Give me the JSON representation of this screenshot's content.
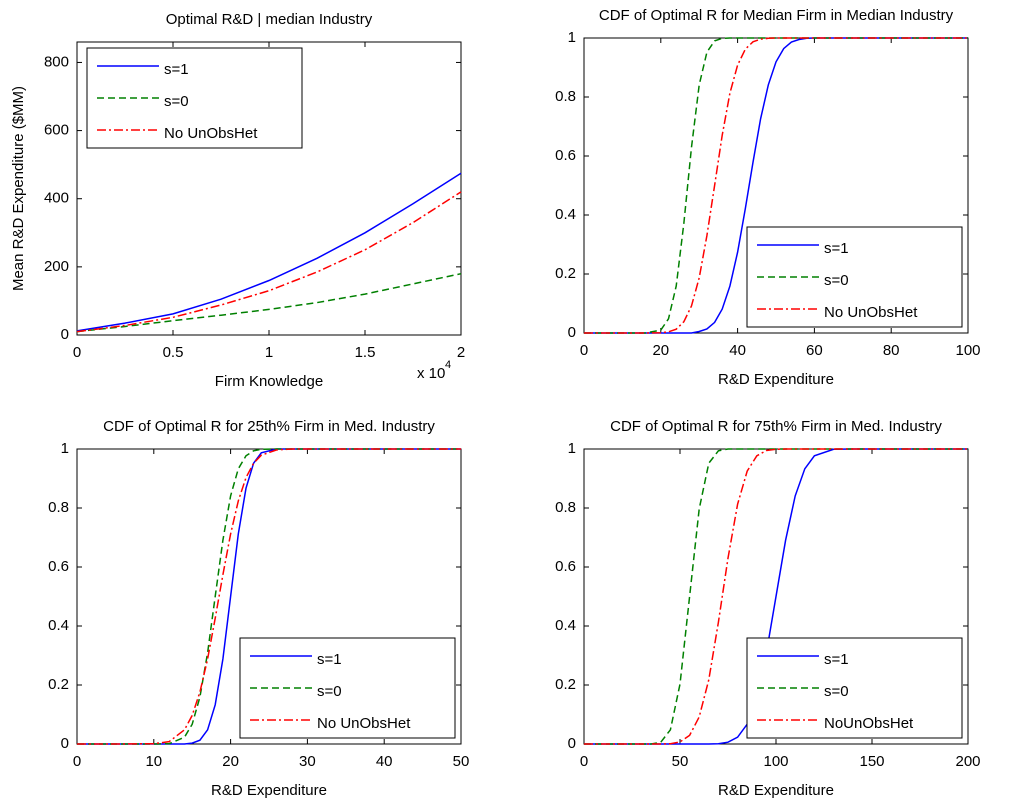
{
  "chart_data": [
    {
      "type": "line",
      "title": "Optimal R&D | median Industry",
      "xlabel": "Firm Knowledge",
      "ylabel": "Mean R&D Expenditure ($MM)",
      "x_offset_text": "x 10",
      "x_offset_exponent": "4",
      "x": [
        0,
        0.25,
        0.5,
        0.75,
        1,
        1.25,
        1.5,
        1.75,
        2
      ],
      "series": [
        {
          "name": "s=1",
          "color": "#0000ff",
          "linestyle": "-",
          "values": [
            12,
            35,
            62,
            105,
            160,
            225,
            300,
            385,
            475
          ]
        },
        {
          "name": "s=0",
          "color": "#008000",
          "linestyle": "--",
          "values": [
            10,
            25,
            42,
            58,
            75,
            95,
            120,
            150,
            180
          ]
        },
        {
          "name": "No UnObsHet",
          "color": "#ff0000",
          "linestyle": "-.",
          "values": [
            10,
            28,
            52,
            88,
            130,
            185,
            250,
            330,
            420
          ]
        }
      ],
      "xlim": [
        0,
        2
      ],
      "xticks": [
        0,
        0.5,
        1,
        1.5,
        2
      ],
      "ylim": [
        0,
        860
      ],
      "yticks": [
        0,
        200,
        400,
        600,
        800
      ],
      "legend": "northwest"
    },
    {
      "type": "line",
      "title": "CDF of Optimal R for Median Firm in Median Industry",
      "xlabel": "R&D Expenditure",
      "x": [
        0,
        10,
        16,
        20,
        22,
        24,
        26,
        28,
        30,
        32,
        34,
        36,
        38,
        40,
        42,
        44,
        46,
        48,
        50,
        52,
        54,
        56,
        58,
        60,
        70,
        80,
        90,
        100
      ],
      "series": [
        {
          "name": "s=1",
          "color": "#0000ff",
          "linestyle": "-",
          "values": [
            0,
            0,
            0,
            0,
            0,
            0,
            0,
            0,
            0.005,
            0.014,
            0.036,
            0.081,
            0.159,
            0.274,
            0.421,
            0.579,
            0.726,
            0.841,
            0.919,
            0.964,
            0.986,
            0.995,
            0.999,
            1,
            1,
            1,
            1,
            1
          ]
        },
        {
          "name": "s=0",
          "color": "#008000",
          "linestyle": "--",
          "values": [
            0,
            0,
            0,
            0.01,
            0.048,
            0.159,
            0.37,
            0.63,
            0.841,
            0.952,
            0.99,
            0.999,
            1,
            1,
            1,
            1,
            1,
            1,
            1,
            1,
            1,
            1,
            1,
            1,
            1,
            1,
            1,
            1
          ]
        },
        {
          "name": "No UnObsHet",
          "color": "#ff0000",
          "linestyle": "-.",
          "values": [
            0,
            0,
            0,
            0.001,
            0.004,
            0.013,
            0.038,
            0.092,
            0.187,
            0.33,
            0.5,
            0.67,
            0.813,
            0.908,
            0.962,
            0.987,
            0.996,
            0.999,
            1,
            1,
            1,
            1,
            1,
            1,
            1,
            1,
            1,
            1
          ]
        }
      ],
      "xlim": [
        0,
        100
      ],
      "xticks": [
        0,
        20,
        40,
        60,
        80,
        100
      ],
      "ylim": [
        0,
        1
      ],
      "yticks": [
        0,
        0.2,
        0.4,
        0.6,
        0.8,
        1
      ],
      "legend": "southeast"
    },
    {
      "type": "line",
      "title": "CDF of Optimal R for 25th% Firm in Med. Industry",
      "xlabel": "R&D Expenditure",
      "x": [
        0,
        5,
        10,
        12,
        14,
        15,
        16,
        17,
        18,
        19,
        20,
        21,
        22,
        23,
        24,
        26,
        28,
        30,
        40,
        50
      ],
      "series": [
        {
          "name": "s=1",
          "color": "#0000ff",
          "linestyle": "-",
          "values": [
            0,
            0,
            0,
            0,
            0,
            0.003,
            0.013,
            0.048,
            0.133,
            0.288,
            0.5,
            0.712,
            0.867,
            0.952,
            0.987,
            1,
            1,
            1,
            1,
            1
          ]
        },
        {
          "name": "s=0",
          "color": "#008000",
          "linestyle": "--",
          "values": [
            0,
            0,
            0,
            0.001,
            0.023,
            0.067,
            0.159,
            0.309,
            0.5,
            0.691,
            0.841,
            0.933,
            0.977,
            0.994,
            0.999,
            1,
            1,
            1,
            1,
            1
          ]
        },
        {
          "name": "No UnObsHet",
          "color": "#ff0000",
          "linestyle": "-.",
          "values": [
            0,
            0,
            0.001,
            0.008,
            0.048,
            0.097,
            0.176,
            0.288,
            0.426,
            0.574,
            0.712,
            0.824,
            0.903,
            0.952,
            0.979,
            0.997,
            1,
            1,
            1,
            1
          ]
        }
      ],
      "xlim": [
        0,
        50
      ],
      "xticks": [
        0,
        10,
        20,
        30,
        40,
        50
      ],
      "ylim": [
        0,
        1
      ],
      "yticks": [
        0,
        0.2,
        0.4,
        0.6,
        0.8,
        1
      ],
      "legend": "southeast"
    },
    {
      "type": "line",
      "title": "CDF of Optimal R for 75th% Firm in Med. Industry",
      "xlabel": "R&D Expenditure",
      "x": [
        0,
        20,
        30,
        35,
        40,
        45,
        50,
        55,
        60,
        65,
        70,
        75,
        80,
        85,
        90,
        95,
        100,
        105,
        110,
        115,
        120,
        130,
        140,
        160,
        180,
        200
      ],
      "series": [
        {
          "name": "s=1",
          "color": "#0000ff",
          "linestyle": "-",
          "values": [
            0,
            0,
            0,
            0,
            0,
            0,
            0,
            0,
            0,
            0,
            0.001,
            0.006,
            0.023,
            0.067,
            0.159,
            0.309,
            0.5,
            0.691,
            0.841,
            0.933,
            0.977,
            0.999,
            1,
            1,
            1,
            1
          ]
        },
        {
          "name": "s=0",
          "color": "#008000",
          "linestyle": "--",
          "values": [
            0,
            0,
            0,
            0,
            0.006,
            0.048,
            0.203,
            0.5,
            0.797,
            0.952,
            0.994,
            1,
            1,
            1,
            1,
            1,
            1,
            1,
            1,
            1,
            1,
            1,
            1,
            1,
            1,
            1
          ]
        },
        {
          "name": "NoUnObsHet",
          "color": "#ff0000",
          "linestyle": "-.",
          "values": [
            0,
            0,
            0,
            0,
            0,
            0.001,
            0.007,
            0.029,
            0.092,
            0.218,
            0.413,
            0.63,
            0.813,
            0.925,
            0.977,
            0.995,
            0.999,
            1,
            1,
            1,
            1,
            1,
            1,
            1,
            1,
            1
          ]
        }
      ],
      "xlim": [
        0,
        200
      ],
      "xticks": [
        0,
        50,
        100,
        150,
        200
      ],
      "ylim": [
        0,
        1
      ],
      "yticks": [
        0,
        0.2,
        0.4,
        0.6,
        0.8,
        1
      ],
      "legend": "southeast"
    }
  ]
}
